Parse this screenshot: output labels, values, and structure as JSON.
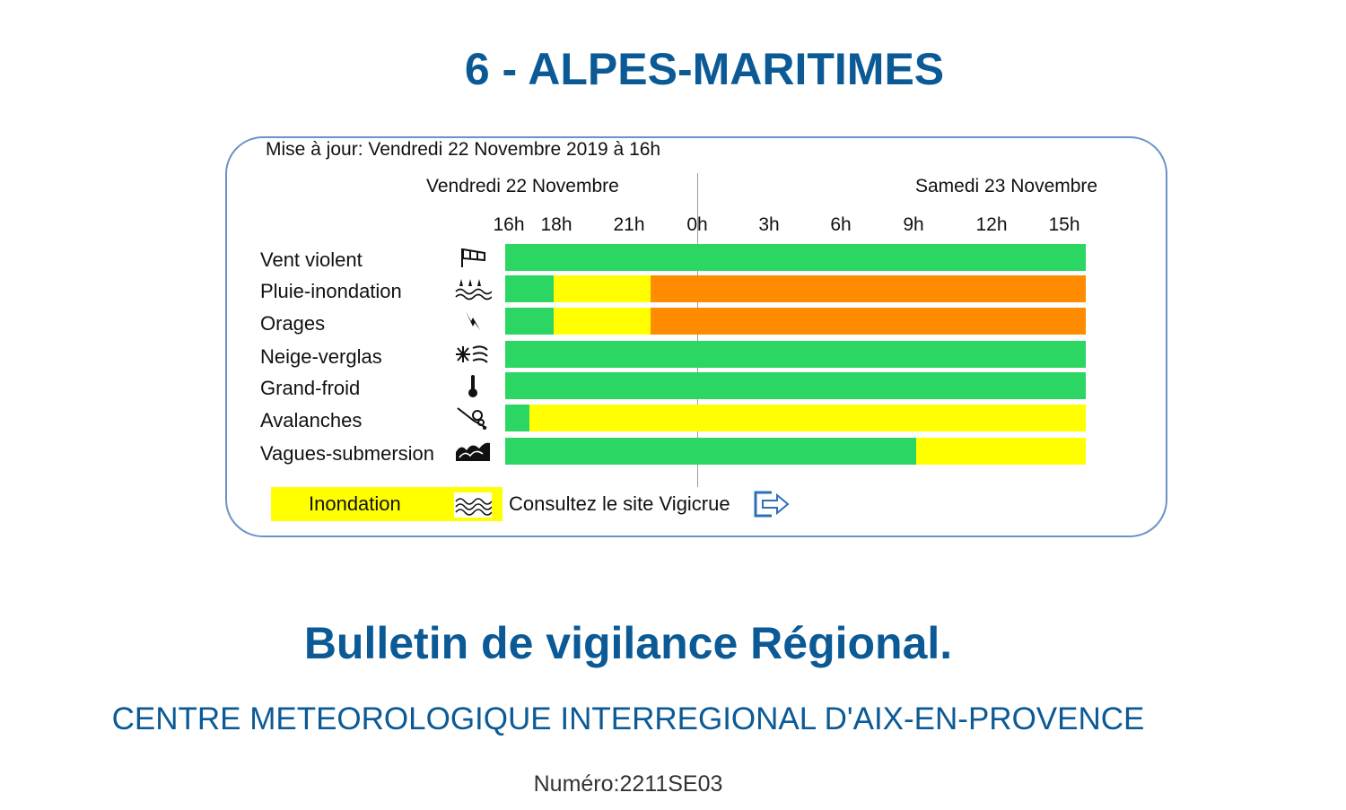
{
  "page": {
    "title": "6 - ALPES-MARITIMES",
    "update": "Mise à jour: Vendredi 22 Novembre 2019 à 16h",
    "day1": "Vendredi 22 Novembre",
    "day2": "Samedi 23 Novembre",
    "hours": [
      "16h",
      "18h",
      "21h",
      "0h",
      "3h",
      "6h",
      "9h",
      "12h",
      "15h"
    ]
  },
  "colors": {
    "green": "#2bd663",
    "yellow": "#ffff00",
    "orange": "#ff8c00",
    "title_blue": "#0b5a96",
    "border_blue": "#6a93c8"
  },
  "chart_data": {
    "type": "table",
    "x_unit": "hours from Vendredi 22 Novembre 16h",
    "x_range": [
      0,
      24
    ],
    "rows": [
      {
        "label": "Vent violent",
        "icon": "wind-sock-icon",
        "segments": [
          {
            "from": 0,
            "to": 24,
            "level": "green"
          }
        ]
      },
      {
        "label": "Pluie-inondation",
        "icon": "rain-flood-icon",
        "segments": [
          {
            "from": 0,
            "to": 2,
            "level": "green"
          },
          {
            "from": 2,
            "to": 6,
            "level": "yellow"
          },
          {
            "from": 6,
            "to": 24,
            "level": "orange"
          }
        ]
      },
      {
        "label": "Orages",
        "icon": "lightning-icon",
        "segments": [
          {
            "from": 0,
            "to": 2,
            "level": "green"
          },
          {
            "from": 2,
            "to": 6,
            "level": "yellow"
          },
          {
            "from": 6,
            "to": 24,
            "level": "orange"
          }
        ]
      },
      {
        "label": "Neige-verglas",
        "icon": "snow-ice-icon",
        "segments": [
          {
            "from": 0,
            "to": 24,
            "level": "green"
          }
        ]
      },
      {
        "label": "Grand-froid",
        "icon": "thermometer-icon",
        "segments": [
          {
            "from": 0,
            "to": 24,
            "level": "green"
          }
        ]
      },
      {
        "label": "Avalanches",
        "icon": "avalanche-icon",
        "segments": [
          {
            "from": 0,
            "to": 1,
            "level": "green"
          },
          {
            "from": 1,
            "to": 24,
            "level": "yellow"
          }
        ]
      },
      {
        "label": "Vagues-submersion",
        "icon": "waves-icon",
        "segments": [
          {
            "from": 0,
            "to": 17,
            "level": "green"
          },
          {
            "from": 17,
            "to": 24,
            "level": "yellow"
          }
        ]
      }
    ]
  },
  "inondation": {
    "label": "Inondation",
    "icon": "flood-waves-icon",
    "link": "Consultez le site Vigicrue",
    "link_icon": "exit-arrow-icon"
  },
  "footer": {
    "bulletin": "Bulletin de vigilance Régional.",
    "centre": "CENTRE METEOROLOGIQUE INTERREGIONAL D'AIX-EN-PROVENCE",
    "numero": "Numéro:2211SE03"
  }
}
